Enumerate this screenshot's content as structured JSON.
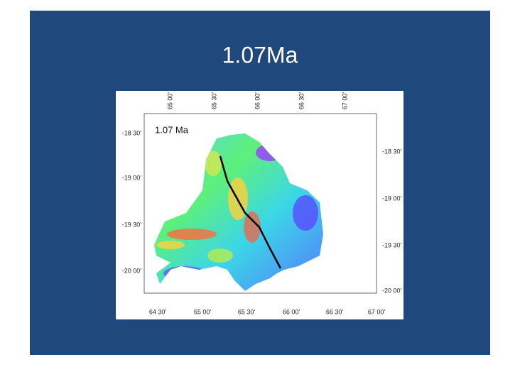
{
  "slide": {
    "title": "1.07Ma"
  },
  "map": {
    "label": "1.07 Ma",
    "top_ticks": [
      "65 00'",
      "65 30'",
      "66 00'",
      "66 30'",
      "67 00'"
    ],
    "bottom_ticks": [
      "64 30'",
      "65 00'",
      "65 30'",
      "66 00'",
      "66 30'",
      "67 00'"
    ],
    "left_ticks": [
      "-18 30'",
      "-19 00'",
      "-19 30'",
      "-20 00'"
    ],
    "right_ticks": [
      "-18 30'",
      "-19 00'",
      "-19 30'",
      "-20 00'"
    ]
  }
}
